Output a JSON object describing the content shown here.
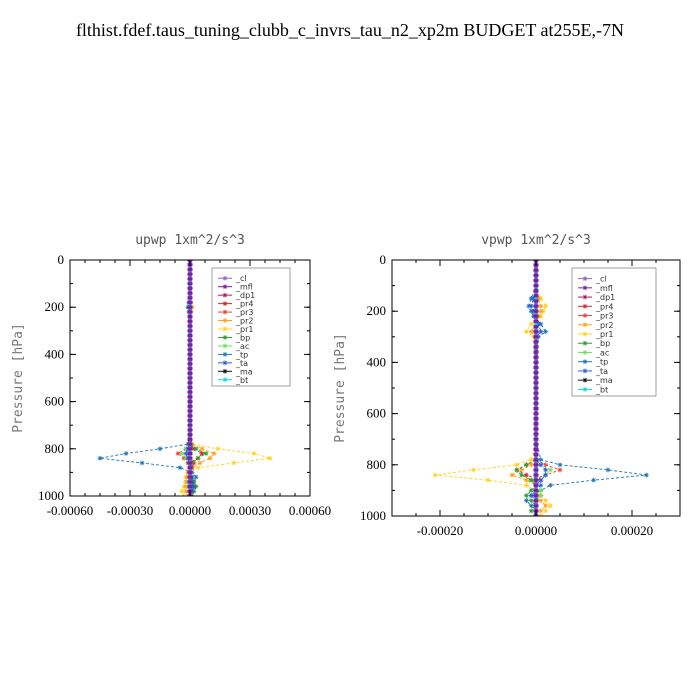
{
  "figure": {
    "title": "flthist.fdef.taus_tuning_clubb_c_invrs_tau_n2_xp2m  BUDGET at255E,-7N"
  },
  "legend_entries": [
    {
      "name": "_cl",
      "color": "#9467bd"
    },
    {
      "name": "_mfl",
      "color": "#7b1fa2"
    },
    {
      "name": "_dp1",
      "color": "#a0205a"
    },
    {
      "name": "_pr4",
      "color": "#d62728"
    },
    {
      "name": "_pr3",
      "color": "#e8453c"
    },
    {
      "name": "_pr2",
      "color": "#ff9f1c"
    },
    {
      "name": "_pr1",
      "color": "#ffd21f"
    },
    {
      "name": "_bp",
      "color": "#2ca02c"
    },
    {
      "name": "_ac",
      "color": "#6ee05a"
    },
    {
      "name": "_tp",
      "color": "#1f77b4"
    },
    {
      "name": "_ta",
      "color": "#2a5fd6"
    },
    {
      "name": "_ma",
      "color": "#111111"
    },
    {
      "name": "_bt",
      "color": "#17d4e0"
    }
  ],
  "chart_data": [
    {
      "type": "line",
      "title": "upwp  1xm^2/s^3",
      "xlabel": "",
      "ylabel": "Pressure [hPa]",
      "xlim": [
        -0.0006,
        0.0006
      ],
      "ylim": [
        1000,
        0
      ],
      "xticks": [
        -0.0006,
        -0.0003,
        0.0,
        0.0003,
        0.0006
      ],
      "xtick_labels": [
        "-0.00060",
        "-0.00030",
        "0.00000",
        "0.00030",
        "0.00060"
      ],
      "yticks": [
        0,
        200,
        400,
        600,
        800,
        1000
      ],
      "ytick_labels": [
        "0",
        "200",
        "400",
        "600",
        "800",
        "1000"
      ],
      "legend_position": "top-right",
      "y": [
        0,
        100,
        180,
        200,
        220,
        300,
        500,
        700,
        780,
        800,
        820,
        840,
        860,
        880,
        900,
        920,
        940,
        960,
        980,
        1000
      ],
      "series": [
        {
          "name": "_tp",
          "x": [
            0,
            0,
            -5e-06,
            -1e-05,
            -5e-06,
            0,
            0,
            0,
            -1e-05,
            -0.00015,
            -0.00032,
            -0.00045,
            -0.00024,
            -5e-05,
            1e-05,
            3e-05,
            2e-05,
            1e-05,
            5e-06,
            0
          ]
        },
        {
          "name": "_pr1",
          "x": [
            0,
            0,
            5e-06,
            1e-05,
            5e-06,
            0,
            0,
            0,
            1e-05,
            0.00014,
            0.00032,
            0.0004,
            0.00022,
            4e-05,
            -1e-05,
            -2e-05,
            -2e-05,
            -3e-05,
            -4e-05,
            -3e-05
          ]
        },
        {
          "name": "_pr2",
          "x": [
            0,
            0,
            5e-06,
            1e-05,
            5e-06,
            0,
            0,
            0,
            1e-05,
            6e-05,
            0.00012,
            0.0001,
            5e-05,
            1e-05,
            -1e-05,
            -1.5e-05,
            -2e-05,
            -2e-05,
            -2e-05,
            -1e-05
          ]
        },
        {
          "name": "_pr3",
          "x": [
            0,
            0,
            0,
            0,
            0,
            0,
            0,
            0,
            0,
            -2e-05,
            -6e-05,
            -3e-05,
            2e-05,
            1e-05,
            0,
            0,
            0,
            0,
            0,
            0
          ]
        },
        {
          "name": "_pr4",
          "x": [
            0,
            0,
            0,
            0,
            0,
            0,
            0,
            0,
            0,
            2e-05,
            6e-05,
            4e-05,
            -1e-05,
            0,
            0,
            0,
            0,
            0,
            0,
            0
          ]
        },
        {
          "name": "_bp",
          "x": [
            0,
            0,
            0,
            0,
            0,
            0,
            0,
            0,
            0,
            3e-05,
            8e-05,
            4e-05,
            1e-05,
            0,
            0,
            1e-05,
            2e-05,
            3e-05,
            2e-05,
            1e-05
          ]
        },
        {
          "name": "_ac",
          "x": [
            0,
            0,
            0,
            0,
            0,
            0,
            0,
            0,
            0,
            -2e-05,
            -4e-05,
            -2e-05,
            0,
            0,
            0,
            0,
            -1e-05,
            -1e-05,
            0,
            0
          ]
        },
        {
          "name": "_ta",
          "x": [
            0,
            0,
            -5e-06,
            -5e-06,
            0,
            0,
            0,
            0,
            0,
            -1e-05,
            -2e-05,
            -1e-05,
            0,
            0,
            0,
            1e-05,
            1e-05,
            2e-05,
            1e-05,
            0
          ]
        },
        {
          "name": "_cl",
          "x": [
            0,
            0,
            0,
            0,
            0,
            0,
            0,
            0,
            0,
            0,
            0,
            0,
            0,
            0,
            0,
            0,
            0,
            0,
            0,
            0
          ]
        },
        {
          "name": "_mfl",
          "x": [
            0,
            0,
            0,
            0,
            0,
            0,
            0,
            0,
            0,
            0,
            0,
            0,
            0,
            0,
            0,
            0,
            0,
            0,
            0,
            0
          ]
        },
        {
          "name": "_dp1",
          "x": [
            0,
            0,
            0,
            0,
            0,
            0,
            0,
            0,
            0,
            0,
            0,
            0,
            0,
            0,
            0,
            0,
            0,
            0,
            0,
            0
          ]
        },
        {
          "name": "_ma",
          "x": [
            0,
            0,
            0,
            0,
            0,
            0,
            0,
            0,
            0,
            0,
            0,
            0,
            0,
            0,
            0,
            0,
            0,
            0,
            0,
            0
          ]
        },
        {
          "name": "_bt",
          "x": [
            0,
            0,
            0,
            0,
            0,
            0,
            0,
            0,
            0,
            0,
            0,
            0,
            0,
            0,
            0,
            0,
            0,
            0,
            0,
            0
          ]
        }
      ]
    },
    {
      "type": "line",
      "title": "vpwp  1xm^2/s^3",
      "xlabel": "",
      "ylabel": "Pressure [hPa]",
      "xlim": [
        -0.0003,
        0.0003
      ],
      "ylim": [
        1000,
        0
      ],
      "xticks": [
        -0.0002,
        0.0,
        0.0002
      ],
      "xtick_labels": [
        "-0.00020",
        "0.00000",
        "0.00020"
      ],
      "yticks": [
        0,
        200,
        400,
        600,
        800,
        1000
      ],
      "ytick_labels": [
        "0",
        "200",
        "400",
        "600",
        "800",
        "1000"
      ],
      "legend_position": "top-right",
      "y": [
        0,
        100,
        150,
        180,
        200,
        220,
        250,
        280,
        300,
        500,
        700,
        780,
        800,
        820,
        840,
        860,
        880,
        900,
        920,
        940,
        960,
        980,
        1000
      ],
      "series": [
        {
          "name": "_tp",
          "x": [
            0,
            0,
            -1e-05,
            -1.5e-05,
            -1e-05,
            -5e-06,
            1e-05,
            2e-05,
            5e-06,
            0,
            0,
            1e-05,
            5e-05,
            0.00015,
            0.00023,
            0.00012,
            3e-05,
            1e-05,
            -1e-05,
            -2e-05,
            -1e-05,
            0,
            0
          ]
        },
        {
          "name": "_pr1",
          "x": [
            0,
            0,
            1e-05,
            2e-05,
            1.5e-05,
            1e-05,
            -1e-05,
            -2e-05,
            -5e-06,
            0,
            0,
            -1e-05,
            -4e-05,
            -0.00013,
            -0.00021,
            -0.0001,
            -2e-05,
            0,
            1e-05,
            2e-05,
            3e-05,
            2e-05,
            1e-05
          ]
        },
        {
          "name": "_pr2",
          "x": [
            0,
            0,
            5e-06,
            1e-05,
            1e-05,
            5e-06,
            0,
            -1e-05,
            0,
            0,
            0,
            0,
            -1e-05,
            -3e-05,
            -5e-05,
            -2e-05,
            0,
            0,
            1e-05,
            1e-05,
            2e-05,
            1e-05,
            0
          ]
        },
        {
          "name": "_pr3",
          "x": [
            0,
            0,
            0,
            0,
            0,
            0,
            0,
            0,
            0,
            0,
            0,
            0,
            2e-05,
            5e-05,
            2e-05,
            -1e-05,
            0,
            0,
            0,
            0,
            0,
            0,
            0
          ]
        },
        {
          "name": "_pr4",
          "x": [
            0,
            0,
            0,
            0,
            0,
            0,
            0,
            0,
            0,
            0,
            0,
            0,
            -2e-05,
            -4e-05,
            -2e-05,
            1e-05,
            0,
            0,
            0,
            0,
            0,
            0,
            0
          ]
        },
        {
          "name": "_bp",
          "x": [
            0,
            0,
            0,
            0,
            0,
            0,
            0,
            0,
            0,
            0,
            0,
            0,
            -2e-05,
            -4e-05,
            -3e-05,
            -1e-05,
            0,
            -1e-05,
            -2e-05,
            -1e-05,
            0,
            -1e-05,
            0
          ]
        },
        {
          "name": "_ac",
          "x": [
            0,
            0,
            0,
            0,
            0,
            0,
            0,
            0,
            0,
            0,
            0,
            0,
            1e-05,
            3e-05,
            2e-05,
            0,
            0,
            1e-05,
            1e-05,
            0,
            0,
            0,
            0
          ]
        },
        {
          "name": "_ta",
          "x": [
            0,
            0,
            -5e-06,
            -1e-05,
            -5e-06,
            0,
            5e-06,
            1e-05,
            0,
            0,
            0,
            0,
            1e-05,
            2e-05,
            2e-05,
            1e-05,
            1e-05,
            0,
            -1e-05,
            0,
            0,
            0,
            0
          ]
        },
        {
          "name": "_cl",
          "x": [
            0,
            0,
            0,
            0,
            0,
            0,
            0,
            0,
            0,
            0,
            0,
            0,
            0,
            0,
            0,
            0,
            0,
            0,
            0,
            0,
            0,
            0,
            0
          ]
        },
        {
          "name": "_mfl",
          "x": [
            0,
            0,
            0,
            0,
            0,
            0,
            0,
            0,
            0,
            0,
            0,
            0,
            0,
            0,
            0,
            0,
            0,
            0,
            0,
            0,
            0,
            0,
            0
          ]
        },
        {
          "name": "_dp1",
          "x": [
            0,
            0,
            0,
            0,
            0,
            0,
            0,
            0,
            0,
            0,
            0,
            0,
            0,
            0,
            0,
            0,
            0,
            0,
            0,
            0,
            0,
            0,
            0
          ]
        },
        {
          "name": "_ma",
          "x": [
            0,
            0,
            0,
            0,
            0,
            0,
            0,
            0,
            0,
            0,
            0,
            0,
            0,
            0,
            0,
            0,
            0,
            0,
            0,
            0,
            0,
            0,
            0
          ]
        },
        {
          "name": "_bt",
          "x": [
            0,
            0,
            0,
            0,
            0,
            0,
            0,
            0,
            0,
            0,
            0,
            0,
            0,
            0,
            0,
            0,
            0,
            0,
            0,
            0,
            0,
            0,
            0
          ]
        }
      ]
    }
  ]
}
